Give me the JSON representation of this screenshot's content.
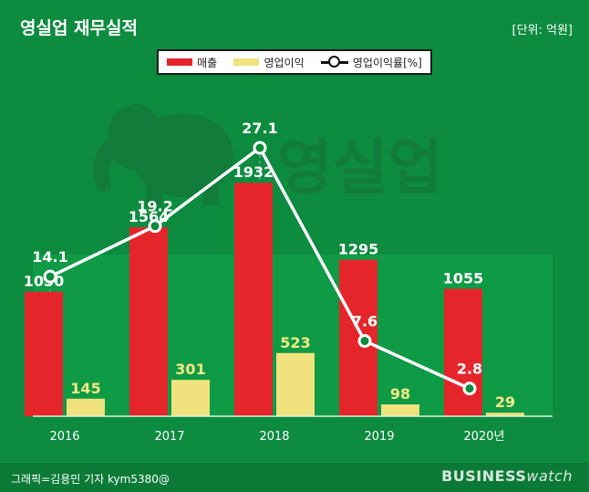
{
  "header": {
    "title": "영실업 재무실적",
    "unit": "[단위: 억원]"
  },
  "legend": {
    "revenue": "매출",
    "operating_profit": "영업이익",
    "margin": "영업이익률[%]"
  },
  "watermark": "영실업",
  "colors": {
    "background": "#0d8b3f",
    "plot_band": "#0f9a45",
    "revenue": "#e4262b",
    "operating_profit": "#f0e27c",
    "margin_line": "#ffffff",
    "label_white": "#ffffff",
    "label_yellow": "#f3e985"
  },
  "chart_data": {
    "type": "bar",
    "title": "영실업 재무실적",
    "unit": "[단위: 억원]",
    "categories": [
      "2016",
      "2017",
      "2018",
      "2019",
      "2020년"
    ],
    "series": [
      {
        "name": "매출",
        "type": "bar",
        "values": [
          1030,
          1564,
          1932,
          1295,
          1055
        ]
      },
      {
        "name": "영업이익",
        "type": "bar",
        "values": [
          145,
          301,
          523,
          98,
          29
        ]
      },
      {
        "name": "영업이익률[%]",
        "type": "line",
        "values": [
          14.1,
          19.2,
          27.1,
          7.6,
          2.8
        ]
      }
    ],
    "ylim_bars": [
      0,
      2100
    ],
    "ylim_line": [
      0,
      40
    ]
  },
  "footer": {
    "credit": "그래픽=김용민 기자 kym5380@",
    "brand_bold": "BUSINESS",
    "brand_light": "watch"
  }
}
